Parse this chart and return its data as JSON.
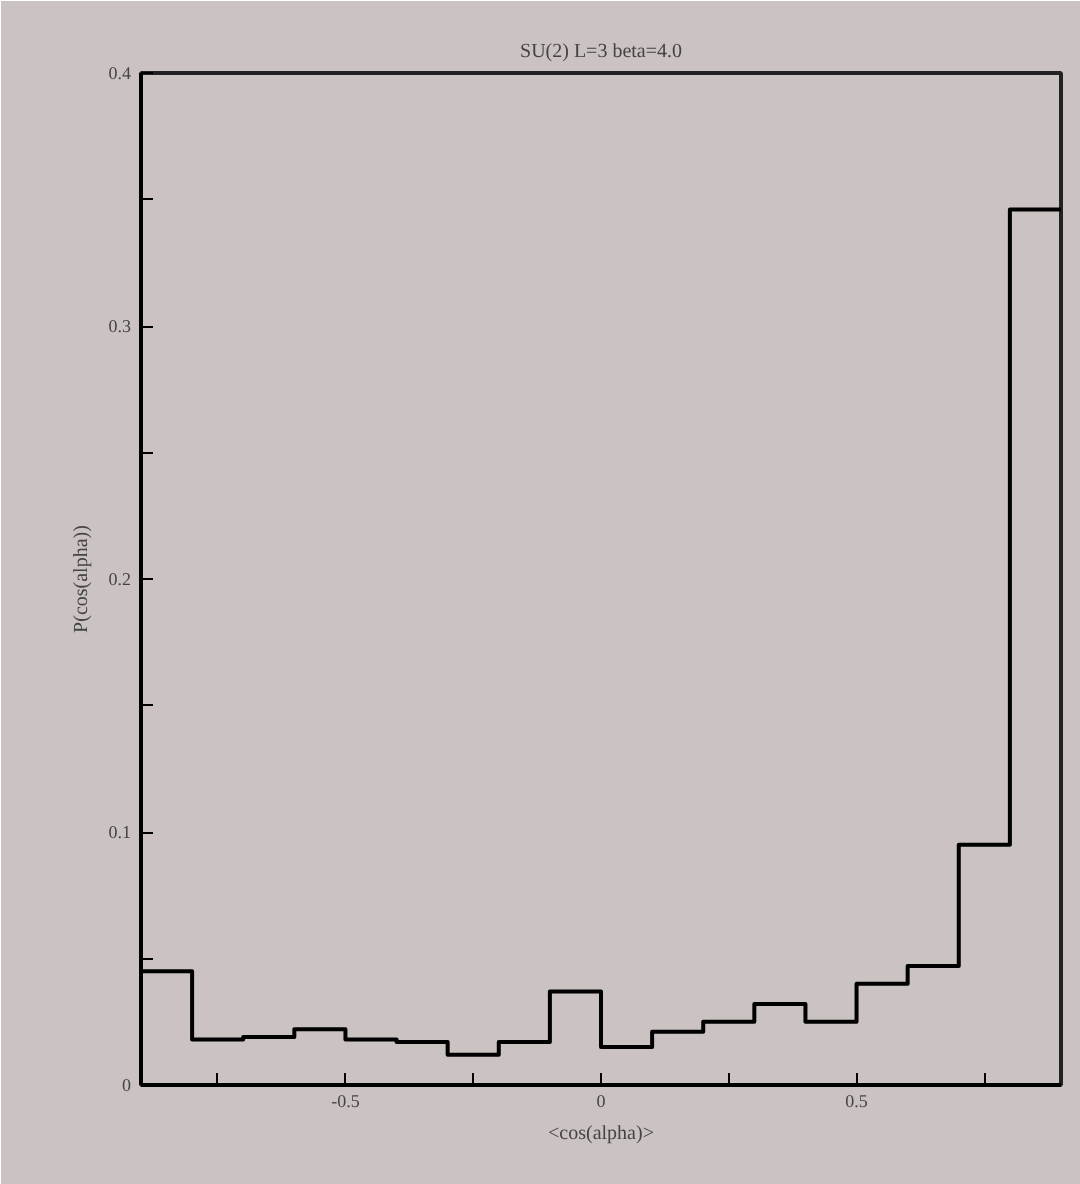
{
  "chart_data": {
    "type": "histogram",
    "title": "SU(2) L=3 beta=4.0",
    "xlabel": "<cos(alpha)>",
    "ylabel": "P(cos(alpha))",
    "bins": [
      -0.9,
      -0.8,
      -0.7,
      -0.6,
      -0.5,
      -0.4,
      -0.3,
      -0.2,
      -0.1,
      0,
      0.1,
      0.2,
      0.3,
      0.4,
      0.5,
      0.6,
      0.7,
      0.8,
      0.9
    ],
    "values": [
      0.045,
      0.018,
      0.019,
      0.022,
      0.018,
      0.017,
      0.012,
      0.017,
      0.037,
      0.015,
      0.021,
      0.025,
      0.032,
      0.025,
      0.04,
      0.047,
      0.095,
      0.346
    ],
    "color": "#000000",
    "xlim": [
      -0.9,
      0.9
    ],
    "ylim": [
      0,
      0.4
    ],
    "xticks": [
      {
        "value": -0.75,
        "label": null
      },
      -0.5,
      {
        "value": -0.25,
        "label": null
      },
      0,
      {
        "value": 0.25,
        "label": null
      },
      0.5,
      {
        "value": 0.75,
        "label": null
      }
    ],
    "yticks": [
      0,
      {
        "value": 0.05,
        "label": null
      },
      0.1,
      {
        "value": 0.15,
        "label": null
      },
      0.2,
      {
        "value": 0.25,
        "label": null
      },
      0.3,
      {
        "value": 0.35,
        "label": null
      },
      0.4
    ],
    "grid": false
  }
}
